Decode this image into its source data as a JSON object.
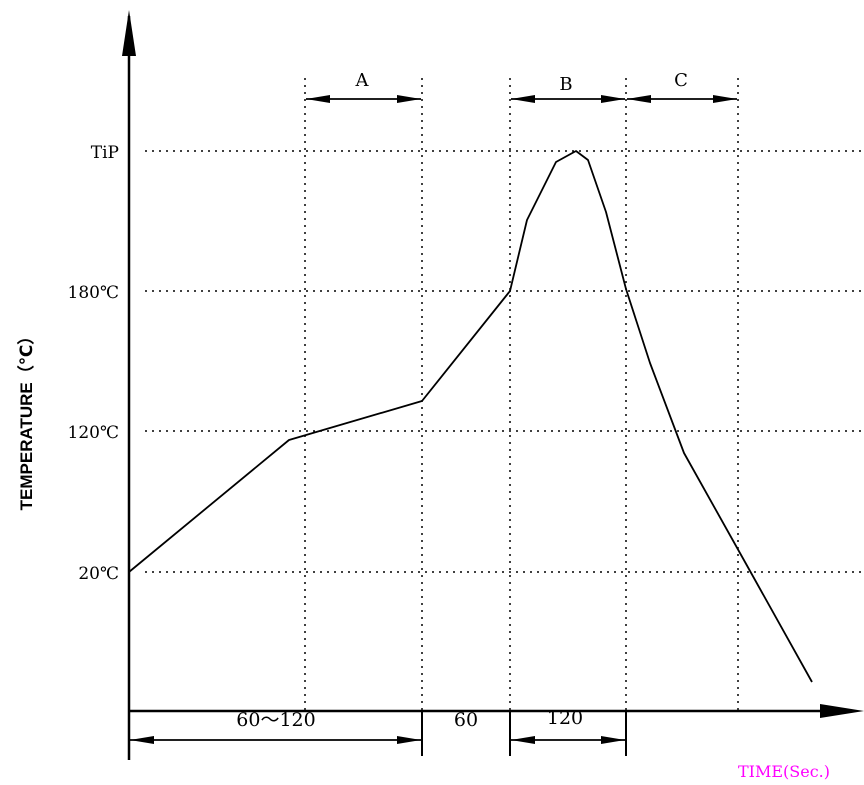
{
  "chart_data": {
    "type": "line",
    "title": "",
    "ylabel": "TEMPERATURE（℃）",
    "xlabel": "TIME(Sec.)",
    "y_levels": [
      {
        "label": "TiP"
      },
      {
        "label": "180℃",
        "value": 180
      },
      {
        "label": "120℃",
        "value": 120
      },
      {
        "label": "20℃",
        "value": 20
      }
    ],
    "time_segments": [
      {
        "label": "60～120"
      },
      {
        "label": "60"
      },
      {
        "label": "120"
      }
    ],
    "zones": [
      {
        "label": "A"
      },
      {
        "label": "B"
      },
      {
        "label": "C"
      }
    ],
    "colors": {
      "line": "#000000",
      "grid": "#000000",
      "xlabel": "#ff00ff"
    }
  }
}
